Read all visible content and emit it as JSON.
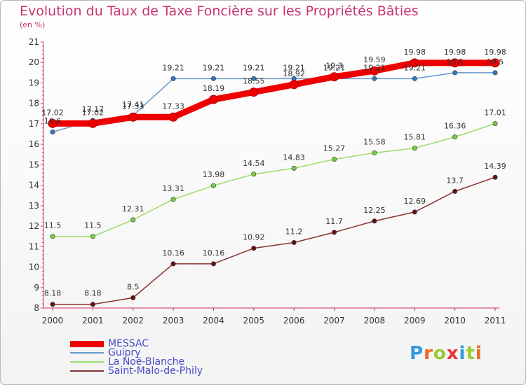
{
  "chart_data": {
    "type": "line",
    "title": "Evolution du Taux de Taxe Foncière sur les Propriétés Bâties",
    "unit_label": "(en %)",
    "categories": [
      "2000",
      "2001",
      "2002",
      "2003",
      "2004",
      "2005",
      "2006",
      "2007",
      "2008",
      "2009",
      "2010",
      "2011"
    ],
    "ylim": [
      8,
      21
    ],
    "yticks": [
      8,
      9,
      10,
      11,
      12,
      13,
      14,
      15,
      16,
      17,
      18,
      19,
      20,
      21
    ],
    "grid": false,
    "legend_position": "bottom-left",
    "series": [
      {
        "name": "MESSAC",
        "color": "#ee0000",
        "markerColor": "#ee0000",
        "width": 9,
        "values": [
          17.02,
          17.02,
          17.33,
          17.33,
          18.19,
          18.55,
          18.92,
          19.3,
          19.59,
          19.98,
          19.98,
          19.98
        ],
        "labels": [
          "17.02",
          "17.02",
          "17.33",
          "17.33",
          "18.19",
          "18.55",
          "18.92",
          "19.3",
          "19.59",
          "19.98",
          "19.98",
          "19.98"
        ]
      },
      {
        "name": "Guipry",
        "color": "#6699cc",
        "markerColor": "#3377bb",
        "width": 1.5,
        "values": [
          16.6,
          17.17,
          17.41,
          19.21,
          19.21,
          19.21,
          19.21,
          19.21,
          19.21,
          19.21,
          19.5,
          19.5
        ],
        "labels": [
          "16.6",
          "17.17",
          "17.41",
          "19.21",
          "19.21",
          "19.21",
          "19.21",
          "19.21",
          "19.21",
          "19.21",
          "19.5",
          "19.5"
        ]
      },
      {
        "name": "La Noë-Blanche",
        "color": "#99dd66",
        "markerColor": "#77cc44",
        "width": 1.5,
        "values": [
          11.5,
          11.5,
          12.31,
          13.31,
          13.98,
          14.54,
          14.83,
          15.27,
          15.58,
          15.81,
          16.36,
          17.01
        ],
        "labels": [
          "11.5",
          "11.5",
          "12.31",
          "13.31",
          "13.98",
          "14.54",
          "14.83",
          "15.27",
          "15.58",
          "15.81",
          "16.36",
          "17.01"
        ]
      },
      {
        "name": "Saint-Malo-de-Phily",
        "color": "#883333",
        "markerColor": "#661111",
        "width": 1.5,
        "values": [
          8.18,
          8.18,
          8.5,
          10.16,
          10.16,
          10.92,
          11.2,
          11.7,
          12.25,
          12.69,
          13.7,
          14.39
        ],
        "labels": [
          "8.18",
          "8.18",
          "8.5",
          "10.16",
          "10.16",
          "10.92",
          "11.2",
          "11.7",
          "12.25",
          "12.69",
          "13.7",
          "14.39"
        ]
      }
    ]
  },
  "logo": {
    "text": "Proxiti",
    "letters": [
      "P",
      "r",
      "o",
      "x",
      "i",
      "t",
      "i"
    ],
    "colors": [
      "#3399dd",
      "#ee6622",
      "#99cc33",
      "#ee3333",
      "#3399dd",
      "#99cc33",
      "#ee6622"
    ]
  }
}
